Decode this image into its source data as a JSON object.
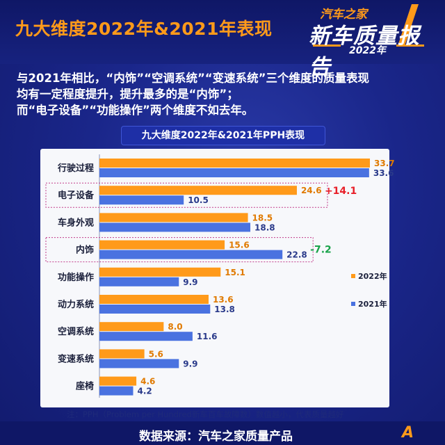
{
  "header": {
    "title": "九大维度2022年&2021年表现",
    "brand_line1": "汽车之家",
    "brand_line2": "新车质量报告",
    "brand_year": "2022年"
  },
  "description": {
    "line1": "与2021年相比，“内饰”“空调系统”“变速系统”三个维度的质量表现",
    "line2": "均有一定程度提升，提升最多的是“内饰”；",
    "line3": "而“电子设备”“功能操作”两个维度不如去年。"
  },
  "chart_data": {
    "type": "bar",
    "orientation": "horizontal",
    "title": "九大维度2022年&2021年PPH表现",
    "categories": [
      "行驶过程",
      "电子设备",
      "车身外观",
      "内饰",
      "功能操作",
      "动力系统",
      "空调系统",
      "变速系统",
      "座椅"
    ],
    "series": [
      {
        "name": "2022年",
        "values": [
          33.7,
          24.6,
          18.5,
          15.6,
          15.1,
          13.6,
          8.0,
          5.6,
          4.6
        ],
        "labels": [
          "33.7",
          "24.6",
          "18.5",
          "15.6",
          "15.1",
          "13.6",
          "8.0",
          "5.6",
          "4.6"
        ]
      },
      {
        "name": "2021年",
        "values": [
          33.6,
          10.5,
          18.8,
          22.8,
          9.9,
          13.8,
          11.6,
          9.9,
          4.2
        ],
        "labels": [
          "33.6",
          "10.5",
          "18.8",
          "22.8",
          "9.9",
          "13.8",
          "11.6",
          "9.9",
          "4.2"
        ]
      }
    ],
    "xlim": [
      0,
      34
    ],
    "legend_position": "right",
    "highlights": [
      {
        "category": "电子设备",
        "text": "+14.1",
        "color": "#e8202a"
      },
      {
        "category": "内饰",
        "text": "-7.2",
        "color": "#1aa34a"
      }
    ],
    "colors": {
      "2022": "#ff9a1a",
      "2021": "#4a72e0",
      "label_2022": "#e07a00",
      "label_2021": "#2a3a8a"
    }
  },
  "note": "注：PPH（Problem per Hundred新车百车故障数）数值越小，代表质量越好",
  "footer": {
    "source": "数据来源：汽车之家质量产品",
    "logo": "A"
  }
}
